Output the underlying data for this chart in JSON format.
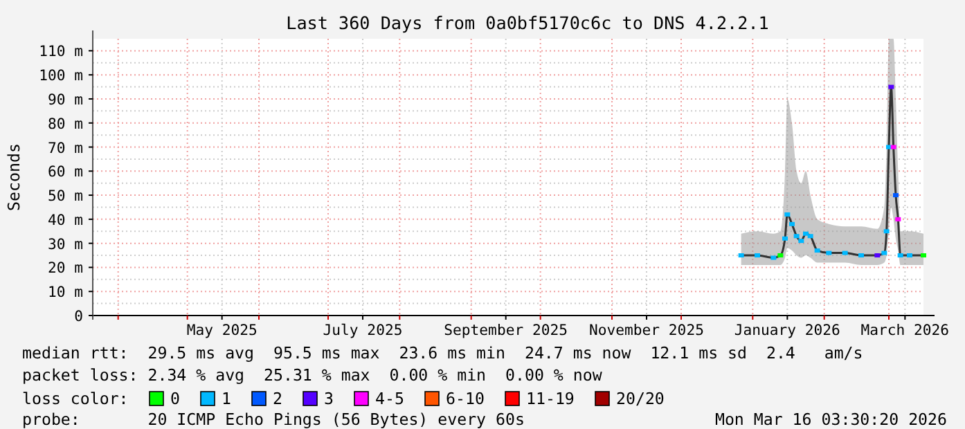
{
  "chart_data": {
    "type": "line",
    "title": "Last 360 Days from 0a0bf5170c6c to DNS 4.2.2.1",
    "ylabel": "Seconds",
    "legend_title": "loss color:",
    "legend": "bottom",
    "grid": true,
    "marker": "none",
    "xlim": [
      "2025-03-21",
      "2026-03-16"
    ],
    "xticks": [
      {
        "value": "2025-04-01",
        "label": null
      },
      {
        "value": "2025-05-01",
        "label": null
      },
      {
        "value": "2025-05-16",
        "label": "May 2025"
      },
      {
        "value": "2025-06-01",
        "label": null
      },
      {
        "value": "2025-07-01",
        "label": null
      },
      {
        "value": "2025-07-16",
        "label": "July 2025"
      },
      {
        "value": "2025-08-01",
        "label": null
      },
      {
        "value": "2025-09-01",
        "label": null
      },
      {
        "value": "2025-09-16",
        "label": "September 2025"
      },
      {
        "value": "2025-10-01",
        "label": null
      },
      {
        "value": "2025-11-01",
        "label": null
      },
      {
        "value": "2025-11-16",
        "label": "November 2025"
      },
      {
        "value": "2025-12-01",
        "label": null
      },
      {
        "value": "2026-01-01",
        "label": null
      },
      {
        "value": "2026-01-16",
        "label": "January 2026"
      },
      {
        "value": "2026-02-01",
        "label": null
      },
      {
        "value": "2026-03-01",
        "label": null
      },
      {
        "value": "2026-03-08",
        "label": "March 2026"
      }
    ],
    "ylim": [
      0,
      115
    ],
    "yticks": [
      0,
      {
        "value": 10,
        "label": "10 m"
      },
      {
        "value": 20,
        "label": "20 m"
      },
      {
        "value": 30,
        "label": "30 m"
      },
      {
        "value": 40,
        "label": "40 m"
      },
      {
        "value": 50,
        "label": "50 m"
      },
      {
        "value": 60,
        "label": "60 m"
      },
      {
        "value": 70,
        "label": "70 m"
      },
      {
        "value": 80,
        "label": "80 m"
      },
      {
        "value": 90,
        "label": "90 m"
      },
      {
        "value": 100,
        "label": "100 m"
      },
      {
        "value": 110,
        "label": "110 m"
      }
    ],
    "x": [
      "2025-12-27",
      "2026-01-03",
      "2026-01-10",
      "2026-01-13",
      "2026-01-15",
      "2026-01-16",
      "2026-01-18",
      "2026-01-20",
      "2026-01-22",
      "2026-01-24",
      "2026-01-26",
      "2026-01-29",
      "2026-02-03",
      "2026-02-10",
      "2026-02-17",
      "2026-02-24",
      "2026-02-27",
      "2026-02-28",
      "2026-03-01",
      "2026-03-02",
      "2026-03-03",
      "2026-03-04",
      "2026-03-05",
      "2026-03-06",
      "2026-03-10",
      "2026-03-16"
    ],
    "series": [
      {
        "color": "#333333",
        "values": [
          25,
          25,
          24,
          25,
          32,
          42,
          38,
          33,
          31,
          34,
          33,
          27,
          26,
          26,
          25,
          25,
          26,
          35,
          70,
          95,
          70,
          50,
          40,
          25,
          25,
          25
        ],
        "lower": [
          21,
          21,
          21,
          21,
          24,
          28,
          27,
          25,
          24,
          25,
          24,
          22,
          22,
          22,
          21,
          21,
          22,
          25,
          35,
          45,
          40,
          32,
          27,
          21,
          21,
          21
        ],
        "upper": [
          34,
          35,
          34,
          35,
          60,
          90,
          80,
          60,
          55,
          60,
          50,
          40,
          38,
          37,
          37,
          36,
          45,
          70,
          115,
          115,
          115,
          90,
          60,
          35,
          35,
          34
        ]
      },
      {
        "type": "scatter",
        "marker": "square",
        "name": "0",
        "color": "#00ff00",
        "values": [
          null,
          null,
          null,
          25,
          null,
          null,
          null,
          null,
          null,
          null,
          null,
          null,
          null,
          null,
          null,
          null,
          null,
          null,
          null,
          null,
          null,
          null,
          null,
          null,
          null,
          25
        ]
      },
      {
        "type": "scatter",
        "marker": "square",
        "name": "1",
        "color": "#00b8ff",
        "values": [
          25,
          25,
          24,
          null,
          32,
          42,
          38,
          33,
          31,
          34,
          33,
          27,
          26,
          26,
          25,
          null,
          26,
          35,
          70,
          null,
          null,
          null,
          null,
          25,
          25,
          null
        ]
      },
      {
        "type": "scatter",
        "marker": "square",
        "name": "2",
        "color": "#0059ff",
        "values": [
          null,
          null,
          null,
          null,
          null,
          null,
          null,
          null,
          null,
          null,
          null,
          null,
          null,
          null,
          null,
          null,
          null,
          null,
          null,
          null,
          null,
          50,
          null,
          null,
          null,
          null
        ]
      },
      {
        "type": "scatter",
        "marker": "square",
        "name": "3",
        "color": "#5500ff",
        "values": [
          null,
          null,
          null,
          null,
          null,
          null,
          null,
          null,
          null,
          null,
          null,
          null,
          null,
          null,
          null,
          25,
          null,
          null,
          null,
          95,
          null,
          null,
          null,
          null,
          null,
          null
        ]
      },
      {
        "type": "scatter",
        "marker": "square",
        "name": "4-5",
        "color": "#ff00ff",
        "values": [
          null,
          null,
          null,
          null,
          null,
          null,
          null,
          null,
          null,
          null,
          null,
          null,
          null,
          null,
          null,
          null,
          null,
          null,
          null,
          null,
          70,
          null,
          40,
          null,
          null,
          null
        ]
      },
      {
        "type": "scatter",
        "marker": "square",
        "name": "6-10",
        "color": "#ff5500",
        "values": [
          null,
          null,
          null,
          null,
          null,
          null,
          null,
          null,
          null,
          null,
          null,
          null,
          null,
          null,
          null,
          null,
          null,
          null,
          null,
          null,
          null,
          null,
          null,
          null,
          null,
          null
        ]
      },
      {
        "type": "scatter",
        "marker": "square",
        "name": "11-19",
        "color": "#ff0000",
        "values": [
          null,
          null,
          null,
          null,
          null,
          null,
          null,
          null,
          null,
          null,
          null,
          null,
          null,
          null,
          null,
          null,
          null,
          null,
          null,
          null,
          null,
          null,
          null,
          null,
          null,
          null
        ]
      },
      {
        "type": "scatter",
        "marker": "square",
        "name": "20/20",
        "color": "#a10000",
        "values": [
          null,
          null,
          null,
          null,
          null,
          null,
          null,
          null,
          null,
          null,
          null,
          null,
          null,
          null,
          null,
          null,
          null,
          null,
          null,
          null,
          null,
          null,
          null,
          null,
          null,
          null
        ]
      }
    ],
    "annotations": [
      "median rtt:  29.5 ms avg  95.5 ms max  23.6 ms min  24.7 ms now  12.1 ms sd  2.4   am/s",
      "packet loss: 2.34 % avg  25.31 % max  0.00 % min  0.00 % now",
      "probe:       20 ICMP Echo Pings (56 Bytes) every 60s",
      "Mon Mar 16 03:30:20 2026"
    ]
  }
}
